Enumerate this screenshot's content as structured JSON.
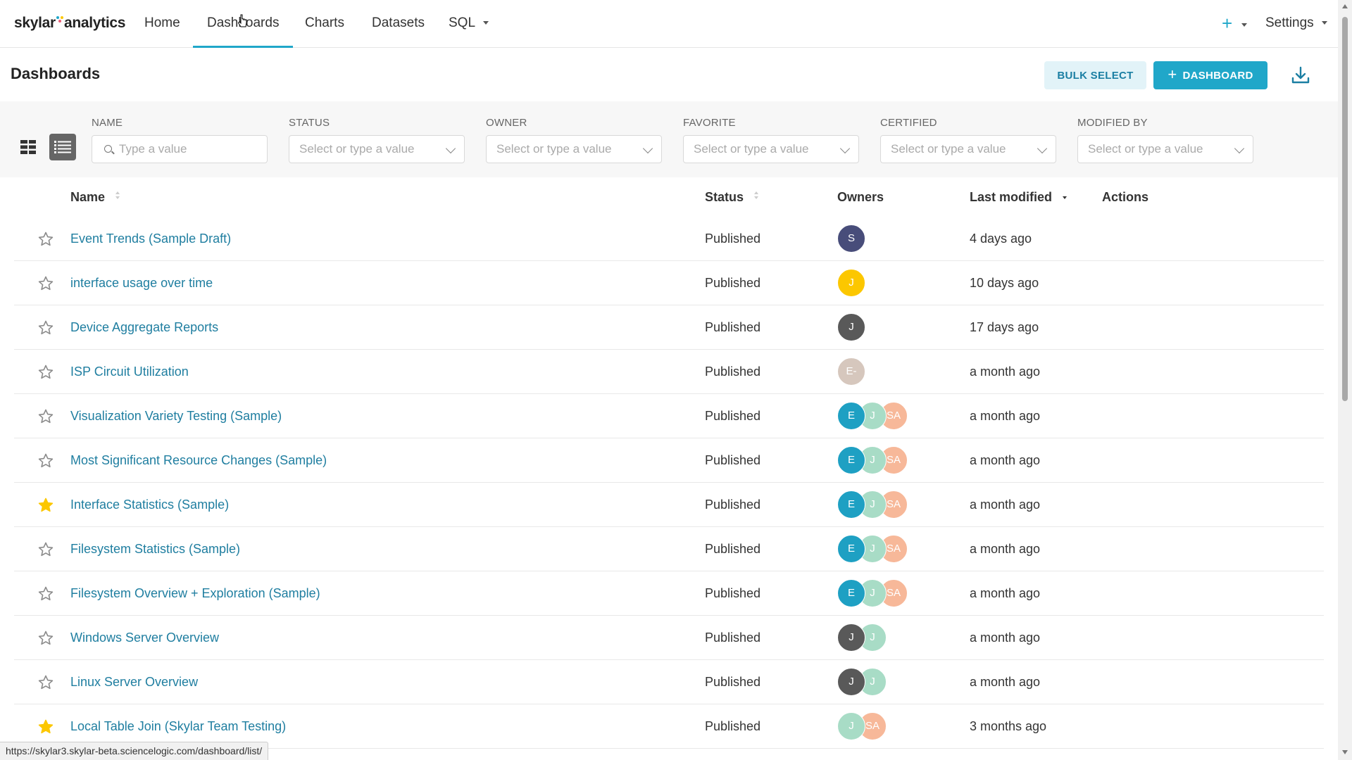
{
  "app": {
    "logo_primary": "skylar",
    "logo_secondary": "analytics",
    "status_url": "https://skylar3.skylar-beta.sciencelogic.com/dashboard/list/"
  },
  "nav": {
    "items": [
      {
        "label": "Home"
      },
      {
        "label": "Dashboards"
      },
      {
        "label": "Charts"
      },
      {
        "label": "Datasets"
      },
      {
        "label": "SQL"
      }
    ],
    "active": "Dashboards",
    "add_label": "+",
    "settings_label": "Settings"
  },
  "header": {
    "title": "Dashboards",
    "bulk_select_label": "BULK SELECT",
    "add_dashboard_label": "DASHBOARD",
    "add_dashboard_icon": "+"
  },
  "filters": {
    "name": {
      "label": "NAME",
      "placeholder": "Type a value"
    },
    "status": {
      "label": "STATUS",
      "placeholder": "Select or type a value"
    },
    "owner": {
      "label": "OWNER",
      "placeholder": "Select or type a value"
    },
    "favorite": {
      "label": "FAVORITE",
      "placeholder": "Select or type a value"
    },
    "certified": {
      "label": "CERTIFIED",
      "placeholder": "Select or type a value"
    },
    "modified_by": {
      "label": "MODIFIED BY",
      "placeholder": "Select or type a value"
    }
  },
  "table": {
    "columns": {
      "name": "Name",
      "status": "Status",
      "owners": "Owners",
      "last_modified": "Last modified",
      "actions": "Actions"
    },
    "rows": [
      {
        "name": "Event Trends (Sample Draft)",
        "status": "Published",
        "modified": "4 days ago",
        "favorite": false,
        "owners": [
          {
            "initials": "S",
            "color": "#484d7a"
          }
        ]
      },
      {
        "name": "interface usage over time",
        "status": "Published",
        "modified": "10 days ago",
        "favorite": false,
        "owners": [
          {
            "initials": "J",
            "color": "#fcc700"
          }
        ]
      },
      {
        "name": "Device Aggregate Reports",
        "status": "Published",
        "modified": "17 days ago",
        "favorite": false,
        "owners": [
          {
            "initials": "J",
            "color": "#595959"
          }
        ]
      },
      {
        "name": "ISP Circuit Utilization",
        "status": "Published",
        "modified": "a month ago",
        "favorite": false,
        "owners": [
          {
            "initials": "E-",
            "color": "#d6c7bd"
          }
        ]
      },
      {
        "name": "Visualization Variety Testing (Sample)",
        "status": "Published",
        "modified": "a month ago",
        "favorite": false,
        "owners": [
          {
            "initials": "E",
            "color": "#1ea0c3"
          },
          {
            "initials": "J",
            "color": "#a8dcc6"
          },
          {
            "initials": "SA",
            "color": "#f7b899"
          }
        ]
      },
      {
        "name": "Most Significant Resource Changes (Sample)",
        "status": "Published",
        "modified": "a month ago",
        "favorite": false,
        "owners": [
          {
            "initials": "E",
            "color": "#1ea0c3"
          },
          {
            "initials": "J",
            "color": "#a8dcc6"
          },
          {
            "initials": "SA",
            "color": "#f7b899"
          }
        ]
      },
      {
        "name": "Interface Statistics (Sample)",
        "status": "Published",
        "modified": "a month ago",
        "favorite": true,
        "owners": [
          {
            "initials": "E",
            "color": "#1ea0c3"
          },
          {
            "initials": "J",
            "color": "#a8dcc6"
          },
          {
            "initials": "SA",
            "color": "#f7b899"
          }
        ]
      },
      {
        "name": "Filesystem Statistics (Sample)",
        "status": "Published",
        "modified": "a month ago",
        "favorite": false,
        "owners": [
          {
            "initials": "E",
            "color": "#1ea0c3"
          },
          {
            "initials": "J",
            "color": "#a8dcc6"
          },
          {
            "initials": "SA",
            "color": "#f7b899"
          }
        ]
      },
      {
        "name": "Filesystem Overview + Exploration (Sample)",
        "status": "Published",
        "modified": "a month ago",
        "favorite": false,
        "owners": [
          {
            "initials": "E",
            "color": "#1ea0c3"
          },
          {
            "initials": "J",
            "color": "#a8dcc6"
          },
          {
            "initials": "SA",
            "color": "#f7b899"
          }
        ]
      },
      {
        "name": "Windows Server Overview",
        "status": "Published",
        "modified": "a month ago",
        "favorite": false,
        "owners": [
          {
            "initials": "J",
            "color": "#595959"
          },
          {
            "initials": "J",
            "color": "#a8dcc6"
          }
        ]
      },
      {
        "name": "Linux Server Overview",
        "status": "Published",
        "modified": "a month ago",
        "favorite": false,
        "owners": [
          {
            "initials": "J",
            "color": "#595959"
          },
          {
            "initials": "J",
            "color": "#a8dcc6"
          }
        ]
      },
      {
        "name": "Local Table Join (Skylar Team Testing)",
        "status": "Published",
        "modified": "3 months ago",
        "favorite": true,
        "owners": [
          {
            "initials": "J",
            "color": "#a8dcc6"
          },
          {
            "initials": "SA",
            "color": "#f7b899"
          }
        ]
      }
    ]
  },
  "colors": {
    "accent": "#20a7c9",
    "link": "#1f7ea0",
    "star_favorite": "#fcc700",
    "star_empty": "#8a8a8a"
  }
}
